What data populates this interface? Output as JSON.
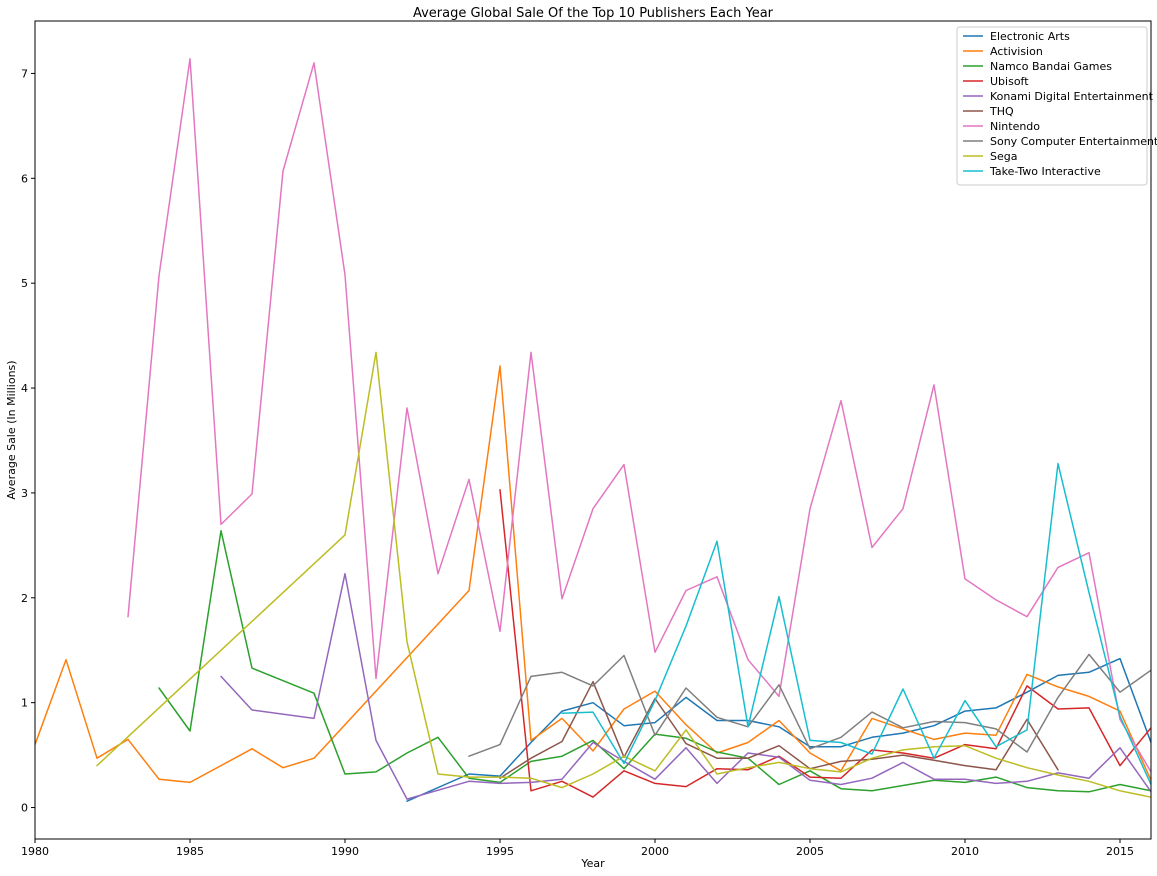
{
  "chart_data": {
    "type": "line",
    "title": "Average Global Sale Of the Top 10 Publishers Each Year",
    "xlabel": "Year",
    "ylabel": "Average Sale (In Millions)",
    "xlim": [
      1980,
      2016
    ],
    "ylim": [
      -0.3,
      7.5
    ],
    "xticks": [
      1980,
      1985,
      1990,
      1995,
      2000,
      2005,
      2010,
      2015
    ],
    "yticks": [
      0,
      1,
      2,
      3,
      4,
      5,
      6,
      7
    ],
    "grid": false,
    "legend_position": "top-right",
    "series": [
      {
        "name": "Electronic Arts",
        "color": "#1f77b4",
        "x": [
          1992,
          1994,
          1995,
          1996,
          1997,
          1998,
          1999,
          2000,
          2001,
          2002,
          2003,
          2004,
          2005,
          2006,
          2007,
          2008,
          2009,
          2010,
          2011,
          2012,
          2013,
          2014,
          2015,
          2016
        ],
        "y": [
          0.06,
          0.32,
          0.3,
          0.62,
          0.92,
          1.0,
          0.78,
          0.81,
          1.05,
          0.83,
          0.83,
          0.77,
          0.58,
          0.58,
          0.67,
          0.71,
          0.78,
          0.92,
          0.95,
          1.1,
          1.26,
          1.29,
          1.42,
          0.62
        ]
      },
      {
        "name": "Activision",
        "color": "#ff7f0e",
        "x": [
          1980,
          1981,
          1982,
          1983,
          1984,
          1985,
          1987,
          1988,
          1989,
          1994,
          1995,
          1996,
          1997,
          1998,
          1999,
          2000,
          2001,
          2002,
          2003,
          2004,
          2005,
          2006,
          2007,
          2008,
          2009,
          2010,
          2011,
          2012,
          2013,
          2014,
          2015,
          2016
        ],
        "y": [
          0.6,
          1.41,
          0.47,
          0.65,
          0.27,
          0.24,
          0.56,
          0.38,
          0.47,
          2.07,
          4.21,
          0.64,
          0.85,
          0.54,
          0.94,
          1.11,
          0.79,
          0.52,
          0.62,
          0.83,
          0.52,
          0.35,
          0.85,
          0.75,
          0.65,
          0.71,
          0.69,
          1.27,
          1.15,
          1.06,
          0.92,
          0.26
        ]
      },
      {
        "name": "Namco Bandai Games",
        "color": "#2ca02c",
        "x": [
          1984,
          1985,
          1986,
          1987,
          1989,
          1990,
          1991,
          1992,
          1993,
          1994,
          1995,
          1996,
          1997,
          1998,
          1999,
          2000,
          2001,
          2002,
          2003,
          2004,
          2005,
          2006,
          2007,
          2008,
          2009,
          2010,
          2011,
          2012,
          2013,
          2014,
          2015,
          2016
        ],
        "y": [
          1.14,
          0.73,
          2.64,
          1.33,
          1.09,
          0.32,
          0.34,
          0.52,
          0.67,
          0.28,
          0.24,
          0.44,
          0.49,
          0.64,
          0.37,
          0.7,
          0.66,
          0.53,
          0.47,
          0.22,
          0.35,
          0.18,
          0.16,
          0.21,
          0.26,
          0.24,
          0.29,
          0.19,
          0.16,
          0.15,
          0.22,
          0.16
        ]
      },
      {
        "name": "Ubisoft",
        "color": "#d62728",
        "x": [
          1995,
          1996,
          1997,
          1998,
          1999,
          2000,
          2001,
          2002,
          2003,
          2004,
          2005,
          2006,
          2007,
          2008,
          2009,
          2010,
          2011,
          2012,
          2013,
          2014,
          2015,
          2016
        ],
        "y": [
          3.03,
          0.16,
          0.25,
          0.1,
          0.35,
          0.23,
          0.2,
          0.37,
          0.36,
          0.49,
          0.29,
          0.28,
          0.55,
          0.52,
          0.47,
          0.6,
          0.56,
          1.16,
          0.94,
          0.95,
          0.4,
          0.76
        ]
      },
      {
        "name": "Konami Digital Entertainment",
        "color": "#9467bd",
        "x": [
          1986,
          1987,
          1989,
          1990,
          1991,
          1992,
          1994,
          1995,
          1996,
          1997,
          1998,
          1999,
          2000,
          2001,
          2002,
          2003,
          2004,
          2005,
          2006,
          2007,
          2008,
          2009,
          2010,
          2011,
          2012,
          2013,
          2014,
          2015,
          2016
        ],
        "y": [
          1.25,
          0.93,
          0.85,
          2.23,
          0.64,
          0.08,
          0.25,
          0.23,
          0.24,
          0.27,
          0.62,
          0.44,
          0.27,
          0.57,
          0.23,
          0.52,
          0.48,
          0.26,
          0.22,
          0.28,
          0.43,
          0.27,
          0.27,
          0.23,
          0.25,
          0.33,
          0.28,
          0.57,
          0.15
        ]
      },
      {
        "name": "THQ",
        "color": "#8c564b",
        "x": [
          1995,
          1996,
          1997,
          1998,
          1999,
          2000,
          2001,
          2002,
          2003,
          2004,
          2005,
          2006,
          2007,
          2008,
          2009,
          2010,
          2011,
          2012,
          2013
        ],
        "y": [
          0.28,
          0.47,
          0.63,
          1.2,
          0.48,
          1.04,
          0.61,
          0.47,
          0.47,
          0.59,
          0.37,
          0.44,
          0.46,
          0.5,
          0.45,
          0.4,
          0.36,
          0.84,
          0.36
        ]
      },
      {
        "name": "Nintendo",
        "color": "#e377c2",
        "x": [
          1983,
          1984,
          1985,
          1986,
          1987,
          1988,
          1989,
          1990,
          1991,
          1992,
          1993,
          1994,
          1995,
          1996,
          1997,
          1998,
          1999,
          2000,
          2001,
          2002,
          2003,
          2004,
          2005,
          2006,
          2007,
          2008,
          2009,
          2010,
          2011,
          2012,
          2013,
          2014,
          2015,
          2016
        ],
        "y": [
          1.82,
          5.07,
          7.14,
          2.7,
          2.99,
          6.07,
          7.1,
          5.08,
          1.23,
          3.81,
          2.23,
          3.13,
          1.68,
          4.34,
          1.99,
          2.85,
          3.27,
          1.48,
          2.07,
          2.2,
          1.41,
          1.06,
          2.85,
          3.88,
          2.48,
          2.85,
          4.03,
          2.18,
          1.98,
          1.82,
          2.29,
          2.43,
          0.84,
          0.34
        ]
      },
      {
        "name": "Sony Computer Entertainment",
        "color": "#7f7f7f",
        "x": [
          1994,
          1995,
          1996,
          1997,
          1998,
          1999,
          2000,
          2001,
          2002,
          2003,
          2004,
          2005,
          2006,
          2007,
          2008,
          2009,
          2010,
          2011,
          2012,
          2013,
          2014,
          2015,
          2016
        ],
        "y": [
          0.49,
          0.6,
          1.25,
          1.29,
          1.16,
          1.45,
          0.69,
          1.14,
          0.86,
          0.77,
          1.17,
          0.56,
          0.67,
          0.91,
          0.76,
          0.82,
          0.81,
          0.75,
          0.53,
          1.05,
          1.46,
          1.1,
          1.31
        ]
      },
      {
        "name": "Sega",
        "color": "#bcbd22",
        "x": [
          1982,
          1990,
          1991,
          1992,
          1993,
          1994,
          1995,
          1996,
          1997,
          1998,
          1999,
          2000,
          2001,
          2002,
          2003,
          2004,
          2005,
          2006,
          2007,
          2008,
          2009,
          2010,
          2011,
          2012,
          2013,
          2014,
          2015,
          2016
        ],
        "y": [
          0.4,
          2.6,
          4.34,
          1.58,
          0.32,
          0.29,
          0.29,
          0.28,
          0.19,
          0.32,
          0.49,
          0.35,
          0.74,
          0.32,
          0.38,
          0.43,
          0.37,
          0.34,
          0.47,
          0.55,
          0.58,
          0.59,
          0.47,
          0.38,
          0.31,
          0.25,
          0.16,
          0.1
        ]
      },
      {
        "name": "Take-Two Interactive",
        "color": "#17becf",
        "x": [
          1997,
          1998,
          1999,
          2000,
          2001,
          2002,
          2003,
          2004,
          2005,
          2006,
          2007,
          2008,
          2009,
          2010,
          2011,
          2012,
          2013,
          2014,
          2015,
          2016
        ],
        "y": [
          0.9,
          0.91,
          0.42,
          1.02,
          1.73,
          2.54,
          0.77,
          2.01,
          0.64,
          0.62,
          0.51,
          1.13,
          0.47,
          1.02,
          0.58,
          0.74,
          3.28,
          2.05,
          0.87,
          0.22
        ]
      }
    ]
  }
}
